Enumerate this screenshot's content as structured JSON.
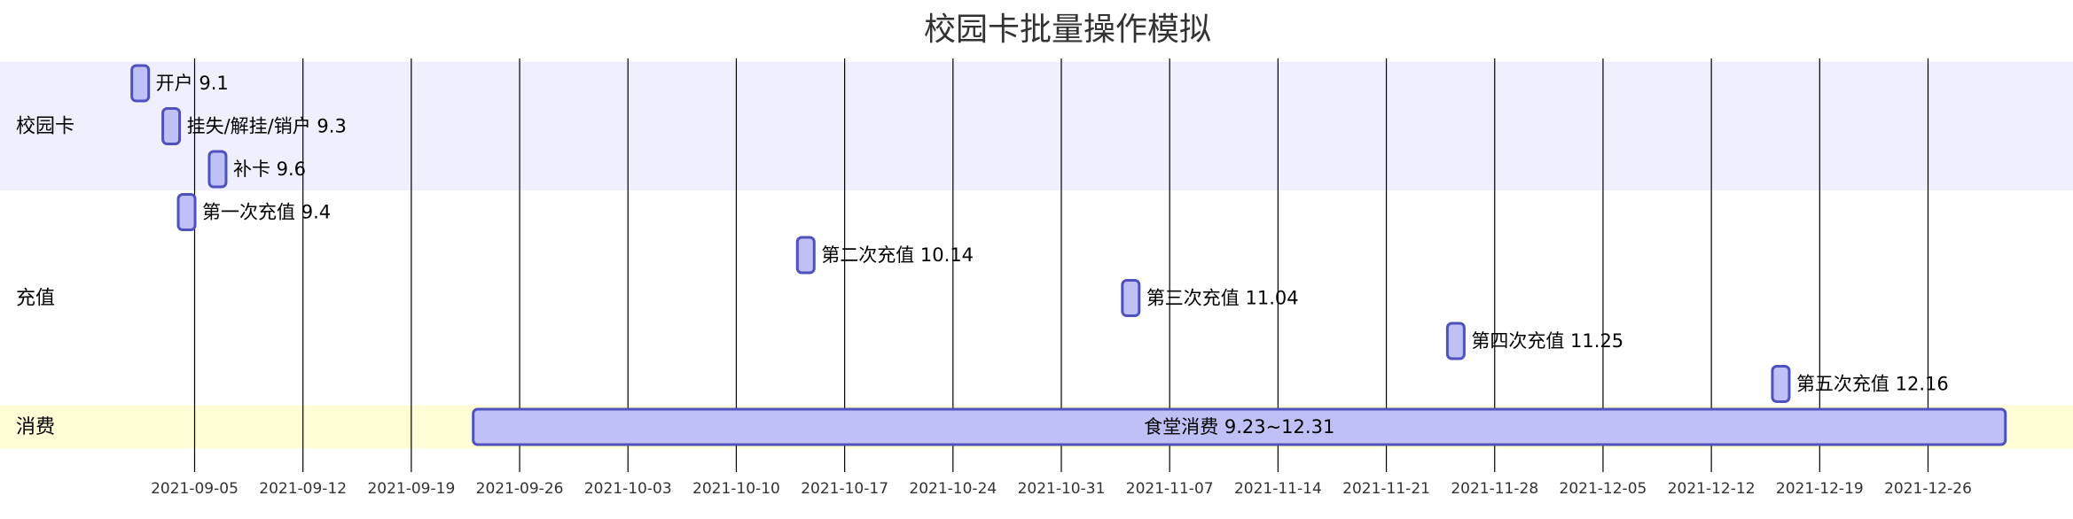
{
  "chart_data": {
    "type": "gantt",
    "title": "校园卡批量操作模拟",
    "colors": {
      "bar_fill": "#bfc0f5",
      "bar_stroke": "#4f51bd",
      "section_band_a": "#efeffe",
      "section_band_b": "#ffffff",
      "section_band_c": "#fffdd6"
    },
    "x_axis": {
      "start": "2021-08-29",
      "end": "2022-01-06",
      "ticks": [
        "2021-09-05",
        "2021-09-12",
        "2021-09-19",
        "2021-09-26",
        "2021-10-03",
        "2021-10-10",
        "2021-10-17",
        "2021-10-24",
        "2021-10-31",
        "2021-11-07",
        "2021-11-14",
        "2021-11-21",
        "2021-11-28",
        "2021-12-05",
        "2021-12-12",
        "2021-12-19",
        "2021-12-26"
      ]
    },
    "sections": [
      {
        "name": "校园卡",
        "tasks": [
          {
            "label": "开户 9.1",
            "start": "2021-09-01",
            "end": "2021-09-02"
          },
          {
            "label": "挂失/解挂/销户 9.3",
            "start": "2021-09-03",
            "end": "2021-09-04"
          },
          {
            "label": "补卡 9.6",
            "start": "2021-09-06",
            "end": "2021-09-07"
          }
        ]
      },
      {
        "name": "充值",
        "tasks": [
          {
            "label": "第一次充值 9.4",
            "start": "2021-09-04",
            "end": "2021-09-05"
          },
          {
            "label": "第二次充值 10.14",
            "start": "2021-10-14",
            "end": "2021-10-15"
          },
          {
            "label": "第三次充值 11.04",
            "start": "2021-11-04",
            "end": "2021-11-05"
          },
          {
            "label": "第四次充值 11.25",
            "start": "2021-11-25",
            "end": "2021-11-26"
          },
          {
            "label": "第五次充值 12.16",
            "start": "2021-12-16",
            "end": "2021-12-17"
          }
        ]
      },
      {
        "name": "消费",
        "tasks": [
          {
            "label": "食堂消费 9.23~12.31",
            "start": "2021-09-23",
            "end": "2021-12-31"
          }
        ]
      }
    ]
  }
}
